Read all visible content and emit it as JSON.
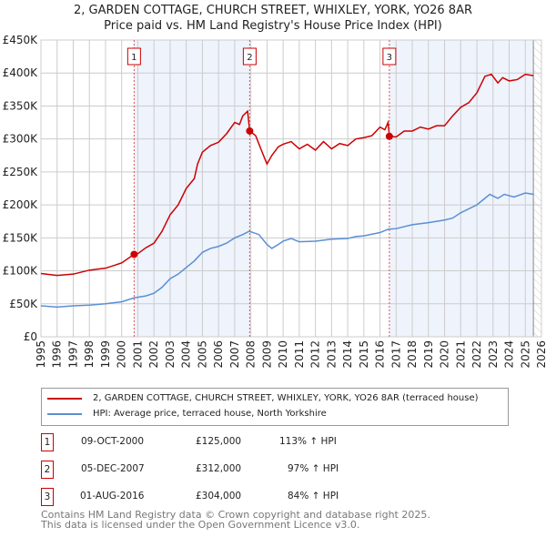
{
  "title_line1": "2, GARDEN COTTAGE, CHURCH STREET, WHIXLEY, YORK, YO26 8AR",
  "title_line2": "Price paid vs. HM Land Registry's House Price Index (HPI)",
  "chart_data": {
    "type": "line",
    "title": "2, GARDEN COTTAGE, CHURCH STREET, WHIXLEY, YORK, YO26 8AR - Price paid vs. HM Land Registry's House Price Index (HPI)",
    "xlim": [
      1995,
      2026
    ],
    "ylim": [
      0,
      450000
    ],
    "x_ticks": [
      "1995",
      "1996",
      "1997",
      "1998",
      "1999",
      "2000",
      "2001",
      "2002",
      "2003",
      "2004",
      "2005",
      "2006",
      "2007",
      "2008",
      "2009",
      "2010",
      "2011",
      "2012",
      "2013",
      "2014",
      "2015",
      "2016",
      "2017",
      "2018",
      "2019",
      "2020",
      "2021",
      "2022",
      "2023",
      "2024",
      "2025",
      "2026"
    ],
    "y_ticks": [
      "£0",
      "£50K",
      "£100K",
      "£150K",
      "£200K",
      "£250K",
      "£300K",
      "£350K",
      "£400K",
      "£450K"
    ],
    "grid": true,
    "colors": {
      "property": "#cc0000",
      "hpi": "#5b8fd4",
      "shade": "#eef3fc"
    },
    "series": [
      {
        "name": "2, GARDEN COTTAGE, CHURCH STREET, WHIXLEY, YORK, YO26 8AR (terraced house)",
        "color": "#cc0000",
        "x": [
          1995,
          1996,
          1997,
          1998,
          1999,
          2000,
          2000.77,
          2001,
          2001.5,
          2002,
          2002.5,
          2003,
          2003.5,
          2004,
          2004.5,
          2004.7,
          2005,
          2005.5,
          2006,
          2006.5,
          2007,
          2007.3,
          2007.5,
          2007.8,
          2007.93,
          2008.3,
          2008.7,
          2009,
          2009.3,
          2009.7,
          2010,
          2010.5,
          2011,
          2011.5,
          2012,
          2012.5,
          2013,
          2013.5,
          2014,
          2014.5,
          2015,
          2015.5,
          2016,
          2016.3,
          2016.5,
          2016.58,
          2017,
          2017.5,
          2018,
          2018.5,
          2019,
          2019.5,
          2020,
          2020.5,
          2021,
          2021.5,
          2022,
          2022.5,
          2022.9,
          2023.3,
          2023.6,
          2024,
          2024.5,
          2025,
          2025.5
        ],
        "y": [
          96000,
          93000,
          95000,
          101000,
          104000,
          112000,
          125000,
          126000,
          135000,
          142000,
          160000,
          185000,
          200000,
          225000,
          240000,
          262000,
          280000,
          290000,
          295000,
          308000,
          325000,
          322000,
          335000,
          342000,
          312000,
          305000,
          280000,
          262000,
          275000,
          288000,
          292000,
          296000,
          285000,
          292000,
          283000,
          296000,
          285000,
          293000,
          290000,
          300000,
          302000,
          305000,
          318000,
          314000,
          325000,
          304000,
          303000,
          312000,
          312000,
          318000,
          315000,
          320000,
          320000,
          335000,
          348000,
          355000,
          370000,
          395000,
          398000,
          385000,
          393000,
          388000,
          390000,
          398000,
          396000
        ]
      },
      {
        "name": "HPI: Average price, terraced house, North Yorkshire",
        "color": "#5b8fd4",
        "x": [
          1995,
          1996,
          1997,
          1998,
          1999,
          2000,
          2000.77,
          2001.5,
          2002,
          2002.5,
          2003,
          2003.5,
          2004,
          2004.5,
          2005,
          2005.5,
          2006,
          2006.5,
          2007,
          2007.5,
          2007.9,
          2008.5,
          2009,
          2009.3,
          2009.7,
          2010,
          2010.5,
          2011,
          2012,
          2013,
          2014,
          2014.5,
          2015,
          2016,
          2016.5,
          2017,
          2018,
          2019,
          2020,
          2020.5,
          2021,
          2021.5,
          2022,
          2022.5,
          2022.8,
          2023.3,
          2023.7,
          2024.3,
          2025,
          2025.5
        ],
        "y": [
          47000,
          45000,
          47000,
          48000,
          50000,
          53000,
          59000,
          62000,
          66000,
          75000,
          88000,
          95000,
          105000,
          115000,
          128000,
          134000,
          137000,
          142000,
          150000,
          155000,
          160000,
          155000,
          140000,
          134000,
          140000,
          145000,
          149000,
          144000,
          145000,
          148000,
          149000,
          152000,
          153000,
          158000,
          163000,
          164000,
          170000,
          173000,
          177000,
          180000,
          188000,
          194000,
          200000,
          210000,
          216000,
          210000,
          216000,
          212000,
          218000,
          216000
        ]
      }
    ],
    "sales": [
      {
        "label": "1",
        "x": 2000.77,
        "price": 125000,
        "date": "09-OCT-2000",
        "price_text": "£125,000",
        "hpi_text": "113% ↑ HPI"
      },
      {
        "label": "2",
        "x": 2007.93,
        "price": 312000,
        "date": "05-DEC-2007",
        "price_text": "£312,000",
        "hpi_text": "97% ↑ HPI"
      },
      {
        "label": "3",
        "x": 2016.58,
        "price": 304000,
        "date": "01-AUG-2016",
        "price_text": "£304,000",
        "hpi_text": "84% ↑ HPI"
      }
    ],
    "data_end": 2025.5,
    "legend_position": "below"
  },
  "footer_line1": "Contains HM Land Registry data © Crown copyright and database right 2025.",
  "footer_line2": "This data is licensed under the Open Government Licence v3.0."
}
